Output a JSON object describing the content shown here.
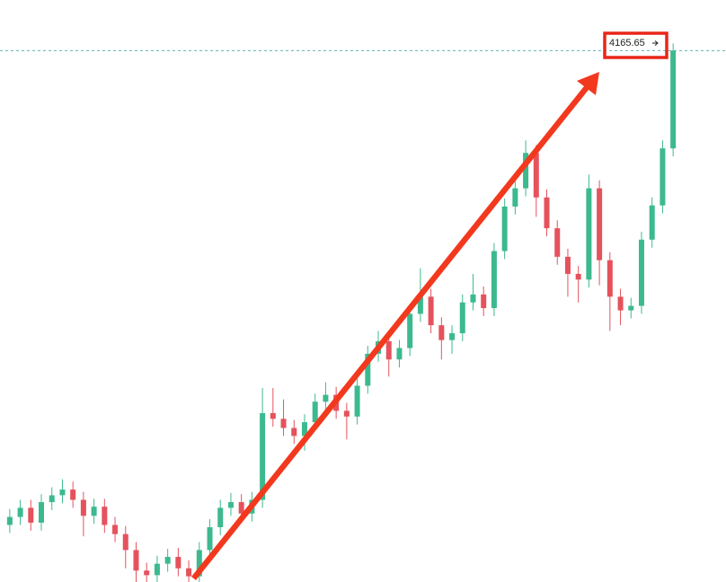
{
  "chart_data": {
    "type": "candlestick",
    "up_color": "#3cb98f",
    "down_color": "#e5525c",
    "ylim": [
      3700,
      4210
    ],
    "price_label": "4165.65",
    "open": [
      3750,
      3757,
      3765,
      3752,
      3770,
      3776,
      3781,
      3772,
      3758,
      3766,
      3750,
      3742,
      3728,
      3710,
      3706,
      3716,
      3722,
      3712,
      3705,
      3728,
      3748,
      3765,
      3770,
      3760,
      3772,
      3848,
      3843,
      3835,
      3828,
      3840,
      3858,
      3864,
      3850,
      3845,
      3872,
      3900,
      3911,
      3895,
      3905,
      3935,
      3950,
      3925,
      3912,
      3918,
      3945,
      3952,
      3940,
      3990,
      4029,
      4045,
      4076,
      4037,
      4010,
      3985,
      3970,
      3965,
      4045,
      3982,
      3950,
      3938,
      3942,
      4000,
      4030,
      4080
    ],
    "close": [
      3757,
      3765,
      3752,
      3770,
      3776,
      3781,
      3772,
      3758,
      3766,
      3750,
      3742,
      3728,
      3710,
      3706,
      3716,
      3722,
      3712,
      3705,
      3728,
      3748,
      3765,
      3770,
      3760,
      3772,
      3848,
      3843,
      3835,
      3828,
      3840,
      3858,
      3864,
      3850,
      3845,
      3872,
      3900,
      3911,
      3895,
      3905,
      3935,
      3950,
      3925,
      3912,
      3918,
      3945,
      3952,
      3940,
      3990,
      4029,
      4045,
      4076,
      4037,
      4010,
      3985,
      3970,
      3965,
      4045,
      3982,
      3950,
      3938,
      3942,
      4000,
      4030,
      4080,
      4165.65
    ],
    "high": [
      3764,
      3772,
      3772,
      3777,
      3783,
      3790,
      3788,
      3779,
      3773,
      3773,
      3757,
      3749,
      3735,
      3717,
      3723,
      3729,
      3730,
      3719,
      3735,
      3755,
      3772,
      3778,
      3777,
      3779,
      3870,
      3870,
      3860,
      3842,
      3847,
      3865,
      3875,
      3871,
      3857,
      3879,
      3907,
      3920,
      3918,
      3912,
      3942,
      3975,
      3957,
      3932,
      3925,
      3952,
      3970,
      3959,
      3997,
      4036,
      4052,
      4087,
      4083,
      4044,
      4017,
      3992,
      3977,
      4057,
      4052,
      3989,
      3957,
      3949,
      4007,
      4037,
      4087,
      4172
    ],
    "low": [
      3743,
      3750,
      3745,
      3745,
      3763,
      3769,
      3765,
      3740,
      3751,
      3743,
      3735,
      3712,
      3700,
      3699,
      3699,
      3709,
      3705,
      3698,
      3698,
      3721,
      3741,
      3758,
      3753,
      3753,
      3765,
      3836,
      3828,
      3821,
      3815,
      3833,
      3851,
      3843,
      3825,
      3838,
      3865,
      3893,
      3880,
      3888,
      3898,
      3928,
      3918,
      3895,
      3900,
      3911,
      3938,
      3933,
      3933,
      3983,
      4022,
      4038,
      4020,
      4003,
      3978,
      3950,
      3945,
      3958,
      3960,
      3920,
      3925,
      3931,
      3935,
      3993,
      4023,
      4073
    ]
  }
}
